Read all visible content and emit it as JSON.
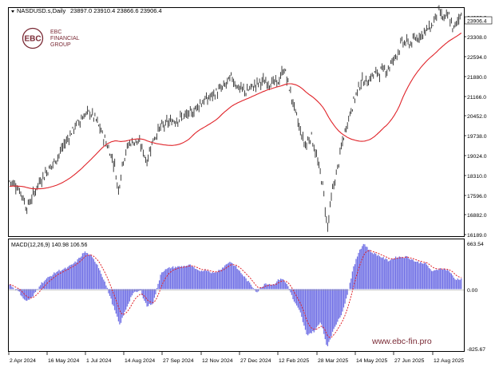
{
  "header": {
    "symbol": "NASDUSD.s,Daily",
    "ohlc": "23897.0 23910.4 23866.6 23906.4"
  },
  "logo": {
    "mark": "EBC",
    "line1": "EBC",
    "line2": "FINANCIAL",
    "line3": "GROUP"
  },
  "price_axis": {
    "labels": [
      "23308.0",
      "22594.0",
      "21880.0",
      "21166.0",
      "20452.0",
      "19738.0",
      "19024.0",
      "18310.0",
      "17596.0",
      "16882.0",
      "16189.0"
    ],
    "current": "23906.4",
    "partial_top": "24022.0"
  },
  "macd_panel": {
    "label": "MACD(12,26,9) 140.98 106.56",
    "axis_labels": [
      "663.54",
      "0.00",
      "-825.67"
    ]
  },
  "time_axis": {
    "labels": [
      "2 Apr 2024",
      "16 May 2024",
      "1 Jul 2024",
      "14 Aug 2024",
      "27 Sep 2024",
      "12 Nov 2024",
      "27 Dec 2024",
      "12 Feb 2025",
      "28 Mar 2025",
      "14 May 2025",
      "27 Jun 2025",
      "12 Aug 2025"
    ]
  },
  "watermark": "www.ebc-fin.pro",
  "colors": {
    "price_bars": "#2b2b2b",
    "moving_average": "#e0242a",
    "macd_histogram": "#7373e6",
    "signal_line": "#e0242a",
    "logo": "#7a2a35",
    "axis_text": "#000000"
  },
  "chart_data": {
    "type": "bar",
    "main": {
      "ylim": [
        16189,
        24022
      ],
      "price_anchor_points": [
        [
          "2 Apr 2024",
          17900
        ],
        [
          "16 May 2024",
          18600
        ],
        [
          "1 Jul 2024",
          20100
        ],
        [
          "14 Aug 2024",
          19200
        ],
        [
          "27 Sep 2024",
          20300
        ],
        [
          "12 Nov 2024",
          21200
        ],
        [
          "27 Dec 2024",
          21600
        ],
        [
          "12 Feb 2025",
          21800
        ],
        [
          "28 Mar 2025",
          18400
        ],
        [
          "14 May 2025",
          21000
        ],
        [
          "27 Jun 2025",
          22500
        ],
        [
          "12 Aug 2025",
          23500
        ]
      ]
    },
    "macd": {
      "ylim": [
        -825.67,
        663.54
      ],
      "last_macd": 140.98,
      "last_signal": 106.56
    }
  }
}
